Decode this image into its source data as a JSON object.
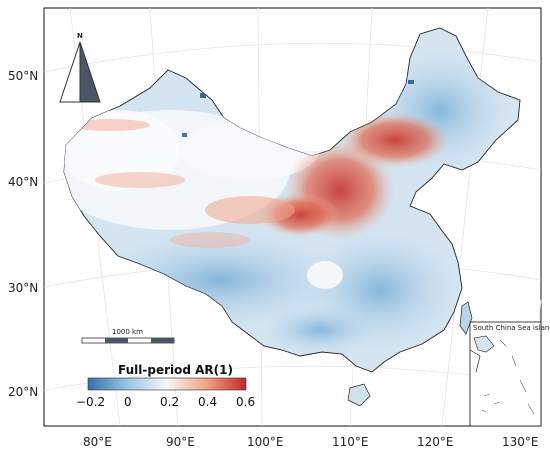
{
  "map": {
    "lat_labels": [
      "50°N",
      "40°N",
      "30°N",
      "20°N"
    ],
    "lon_labels": [
      "80°E",
      "90°E",
      "100°E",
      "110°E",
      "120°E",
      "130°E"
    ],
    "north_arrow": {
      "label": "N",
      "icon": "north-arrow-icon"
    },
    "scale_bar": {
      "label": "1000 km"
    },
    "inset": {
      "title": "South China Sea island"
    }
  },
  "colorbar": {
    "title": "Full-period AR(1)",
    "ticks": [
      "−0.2",
      "0",
      "0.2",
      "0.4",
      "0.6"
    ],
    "range": [
      -0.2,
      0.6
    ],
    "colors": {
      "low": "#3a7fbf",
      "mid": "#f7f7f7",
      "high": "#c8312a"
    }
  }
}
